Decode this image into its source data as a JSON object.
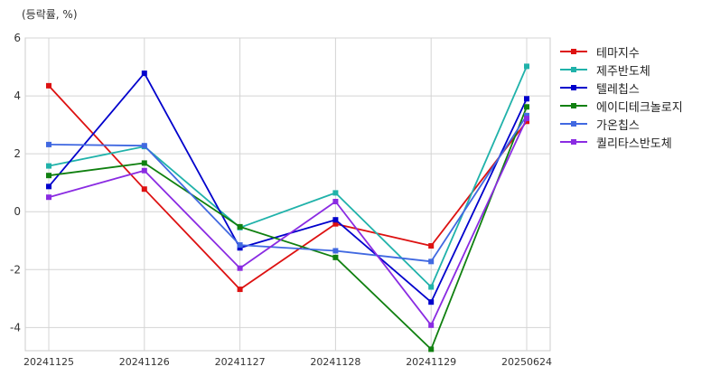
{
  "chart_data": {
    "type": "line",
    "ylabel": "(등락률, %)",
    "categories": [
      "20241125",
      "20241126",
      "20241127",
      "20241128",
      "20241129",
      "20250624"
    ],
    "ylim": [
      -4.8,
      6.0
    ],
    "yticks": [
      -4,
      -2,
      0,
      2,
      4,
      6
    ],
    "grid": true,
    "legend_position": "right",
    "series": [
      {
        "name": "테마지수",
        "color": "#dd1111",
        "values": [
          4.35,
          0.78,
          -2.68,
          -0.42,
          -1.18,
          3.12
        ]
      },
      {
        "name": "제주반도체",
        "color": "#20b2aa",
        "values": [
          1.58,
          2.25,
          -0.55,
          0.65,
          -2.6,
          5.02
        ]
      },
      {
        "name": "텔레칩스",
        "color": "#0000cc",
        "values": [
          0.87,
          4.78,
          -1.25,
          -0.28,
          -3.12,
          3.9
        ]
      },
      {
        "name": "에이디테크놀로지",
        "color": "#108010",
        "values": [
          1.25,
          1.68,
          -0.52,
          -1.58,
          -4.75,
          3.62
        ]
      },
      {
        "name": "가온칩스",
        "color": "#4169e1",
        "values": [
          2.32,
          2.28,
          -1.15,
          -1.35,
          -1.72,
          3.32
        ]
      },
      {
        "name": "퀄리타스반도체",
        "color": "#8a2be2",
        "values": [
          0.5,
          1.42,
          -1.95,
          0.35,
          -3.92,
          3.22
        ]
      }
    ]
  }
}
